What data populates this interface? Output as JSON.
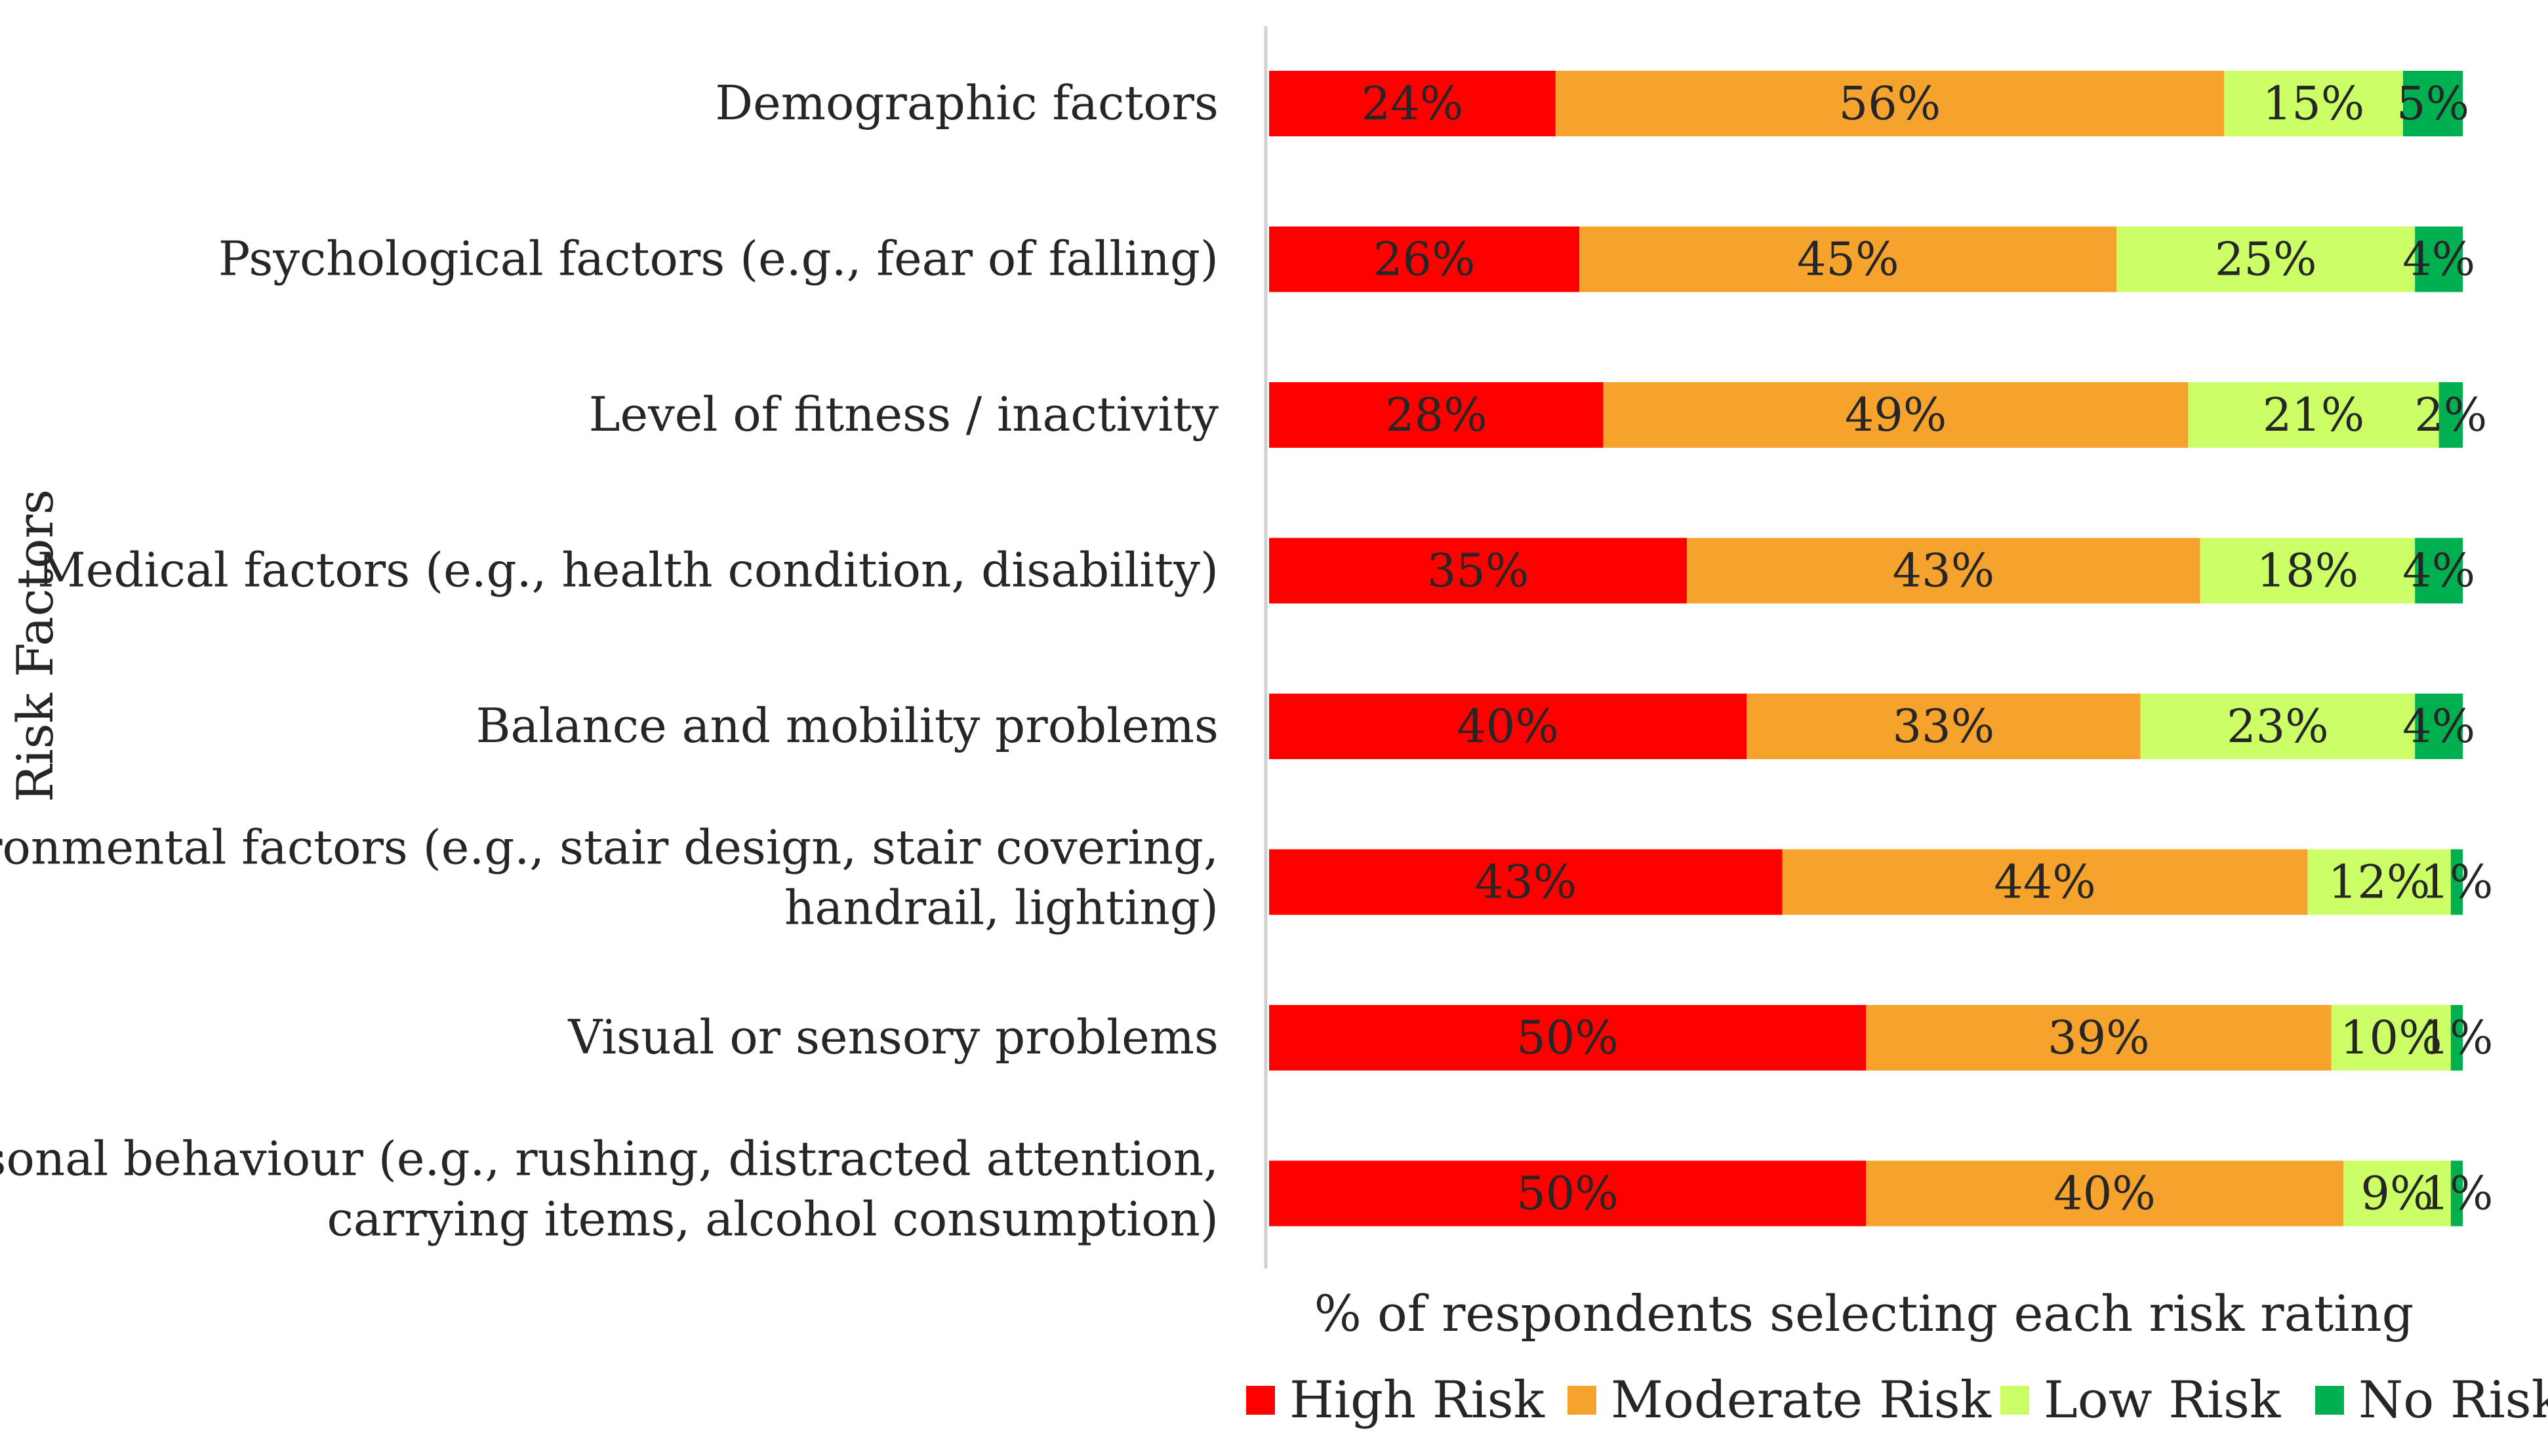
{
  "chart_data": {
    "type": "bar",
    "orientation": "horizontal",
    "stacked": true,
    "title": "",
    "xlabel": "% of respondents selecting each risk rating",
    "ylabel": "Risk Factors",
    "xlim": [
      0,
      100
    ],
    "categories": [
      "Demographic factors",
      "Psychological factors (e.g., fear of falling)",
      "Level of fitness / inactivity",
      "Medical factors (e.g., health condition, disability)",
      "Balance and mobility problems",
      "Environmental factors (e.g., stair design, stair covering, handrail, lighting)",
      "Visual or sensory problems",
      "Personal behaviour (e.g., rushing, distracted attention, carrying items, alcohol consumption)"
    ],
    "category_lines": [
      [
        "Demographic factors"
      ],
      [
        "Psychological factors (e.g., fear of falling)"
      ],
      [
        "Level of fitness / inactivity"
      ],
      [
        "Medical factors (e.g., health condition, disability)"
      ],
      [
        "Balance and mobility problems"
      ],
      [
        "Environmental factors (e.g., stair design, stair covering,",
        "handrail, lighting)"
      ],
      [
        "Visual or sensory problems"
      ],
      [
        "Personal behaviour (e.g., rushing, distracted attention,",
        "carrying items, alcohol consumption)"
      ]
    ],
    "series": [
      {
        "name": "High Risk",
        "color": "#ff0000",
        "values": [
          24,
          26,
          28,
          35,
          40,
          43,
          50,
          50
        ]
      },
      {
        "name": "Moderate Risk",
        "color": "#f5a32c",
        "values": [
          56,
          45,
          49,
          43,
          33,
          44,
          39,
          40
        ]
      },
      {
        "name": "Low Risk",
        "color": "#ccff66",
        "values": [
          15,
          25,
          21,
          18,
          23,
          12,
          10,
          9
        ]
      },
      {
        "name": "No Risk",
        "color": "#00b050",
        "values": [
          5,
          4,
          2,
          4,
          4,
          1,
          1,
          1
        ]
      }
    ],
    "value_suffix": "%",
    "legend_position": "bottom-right",
    "grid": false
  }
}
